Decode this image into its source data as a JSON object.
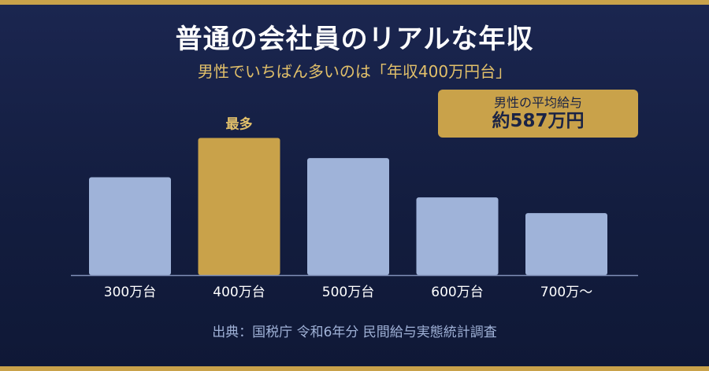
{
  "header": {
    "title": "普通の会社員のリアルな年収",
    "subtitle": "男性でいちばん多いのは「年収400万円台」"
  },
  "average_box": {
    "label": "男性の平均給与",
    "value": "約587万円"
  },
  "source_note": "出典：国税庁 令和6年分 民間給与実態統計調査",
  "colors": {
    "background": "#131d3f",
    "bar": "#9fb3d9",
    "highlight": "#c9a24a",
    "accent_text": "#e2c06a",
    "axis": "#8090b8"
  },
  "chart_data": {
    "type": "bar",
    "categories": [
      "300万台",
      "400万台",
      "500万台",
      "600万台",
      "700万〜"
    ],
    "values": [
      112,
      157,
      134,
      89,
      71
    ],
    "ylim": [
      0,
      180
    ],
    "highlight_index": 1,
    "highlight_label": "最多",
    "grid": false,
    "legend": "none"
  }
}
